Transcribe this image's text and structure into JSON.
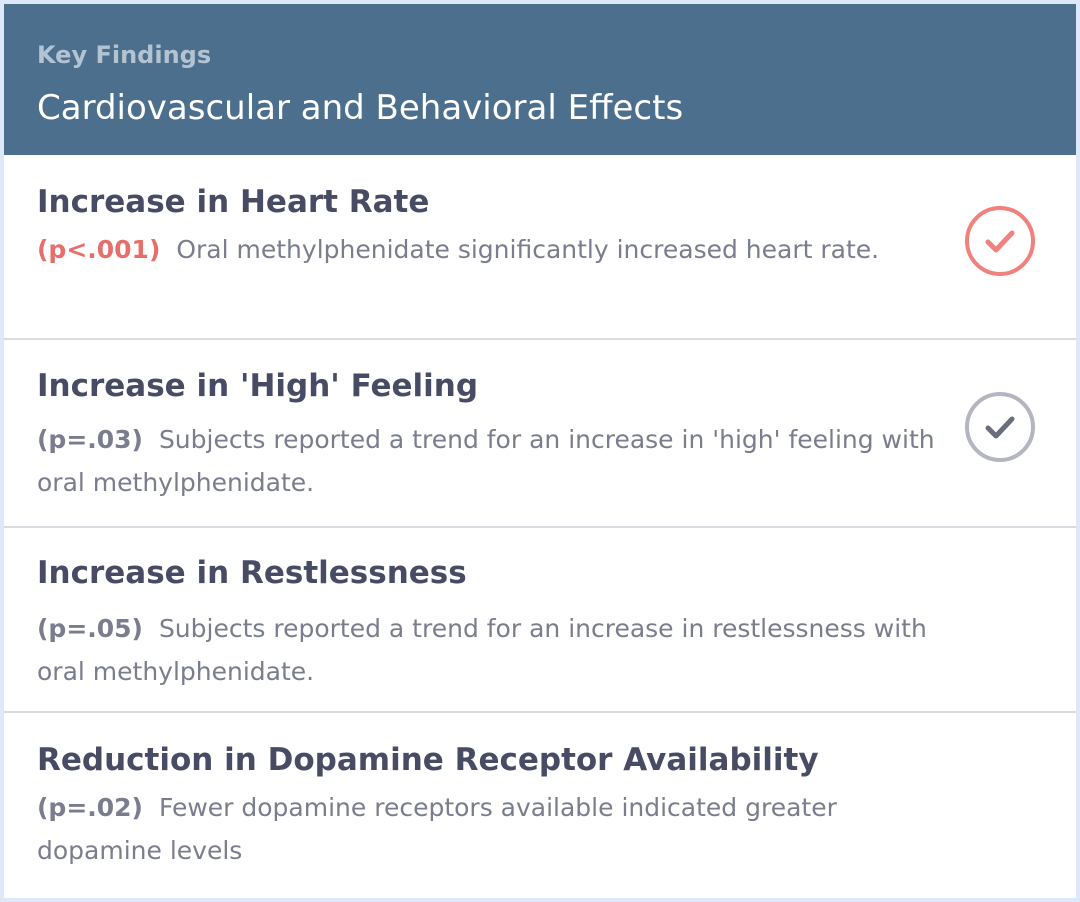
{
  "header": {
    "eyebrow": "Key Findings",
    "title": "Cardiovascular and Behavioral Effects"
  },
  "findings": [
    {
      "title": "Increase in Heart Rate",
      "p_value": "(p<.001)",
      "description": "Oral methylphenidate significantly increased heart rate.",
      "status_icon": "check-circle-icon",
      "status_color": "#f0817c"
    },
    {
      "title": "Increase in 'High' Feeling",
      "p_value": "(p=.03)",
      "description": "Subjects reported a trend for an increase in 'high' feeling with oral methylphenidate.",
      "status_icon": "check-circle-icon",
      "status_color": "#b3b5c0"
    },
    {
      "title": "Increase in Restlessness",
      "p_value": "(p=.05)",
      "description": "Subjects reported a trend for an increase in restlessness with oral methylphenidate."
    },
    {
      "title": "Reduction in Dopamine Receptor Availability",
      "p_value": "(p=.02)",
      "description": "Fewer dopamine receptors available indicated greater dopamine levels"
    }
  ],
  "colors": {
    "header_bg": "#4b6f8c",
    "significant": "#e76f6b",
    "muted": "#7a7d8e"
  }
}
